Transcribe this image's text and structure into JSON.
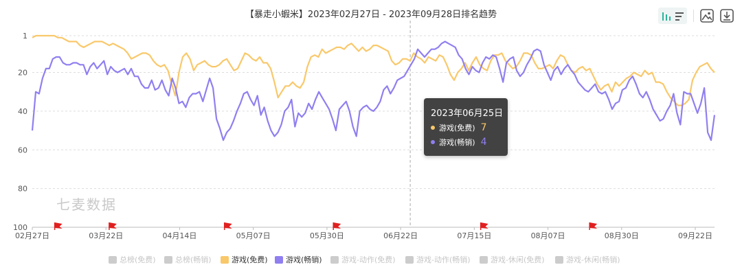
{
  "chart_data": {
    "type": "line",
    "title": "【暴走小蝦米】2023年02月27日 - 2023年09月28日排名趋势",
    "x_start": "2023-02-27",
    "x_end": "2023-09-28",
    "x_ticks": [
      "02月27日",
      "03月22日",
      "04月14日",
      "05月07日",
      "05月30日",
      "06月22日",
      "07月15日",
      "08月07日",
      "08月30日",
      "09月22日"
    ],
    "y_ticks": [
      "1",
      "20",
      "40",
      "60",
      "80",
      "100"
    ],
    "ylim": [
      1,
      100
    ],
    "y_inverted": true,
    "grid": true,
    "series": [
      {
        "name": "游戏(免费)",
        "color": "#f9c86a",
        "values": [
          2,
          1,
          1,
          1,
          1,
          1,
          1,
          2,
          2,
          3,
          4,
          4,
          4,
          6,
          7,
          6,
          5,
          4,
          4,
          4,
          5,
          6,
          5,
          6,
          7,
          8,
          10,
          13,
          12,
          11,
          10,
          10,
          11,
          14,
          16,
          17,
          16,
          19,
          26,
          32,
          20,
          12,
          10,
          13,
          19,
          16,
          15,
          14,
          16,
          17,
          17,
          16,
          14,
          13,
          16,
          19,
          18,
          14,
          10,
          11,
          13,
          14,
          12,
          15,
          15,
          18,
          25,
          33,
          30,
          27,
          27,
          25,
          27,
          28,
          25,
          17,
          12,
          11,
          12,
          8,
          10,
          9,
          8,
          7,
          7,
          8,
          6,
          5,
          7,
          9,
          7,
          9,
          8,
          6,
          6,
          7,
          8,
          9,
          14,
          16,
          15,
          13,
          13,
          14,
          10,
          12,
          13,
          15,
          12,
          13,
          14,
          11,
          12,
          16,
          21,
          24,
          20,
          18,
          15,
          19,
          15,
          12,
          16,
          18,
          19,
          14,
          11,
          11,
          10,
          14,
          16,
          18,
          17,
          14,
          10,
          10,
          11,
          15,
          18,
          18,
          17,
          16,
          18,
          14,
          11,
          12,
          16,
          19,
          20,
          18,
          17,
          19,
          18,
          22,
          26,
          29,
          27,
          26,
          30,
          25,
          27,
          25,
          23,
          22,
          20,
          21,
          22,
          19,
          21,
          20,
          25,
          25,
          26,
          30,
          33,
          35,
          37,
          37,
          36,
          34,
          24,
          20,
          17,
          16,
          15,
          18,
          20
        ],
        "tooltip_value": "7"
      },
      {
        "name": "游戏(畅销)",
        "color": "#8f7ff0",
        "values": [
          50,
          30,
          31,
          23,
          18,
          18,
          13,
          12,
          12,
          15,
          16,
          16,
          15,
          15,
          16,
          16,
          21,
          17,
          15,
          18,
          16,
          14,
          21,
          17,
          19,
          20,
          19,
          18,
          21,
          18,
          22,
          22,
          26,
          28,
          28,
          24,
          29,
          28,
          24,
          29,
          32,
          23,
          28,
          36,
          35,
          38,
          33,
          31,
          31,
          30,
          35,
          29,
          23,
          28,
          44,
          49,
          55,
          51,
          49,
          45,
          40,
          36,
          31,
          30,
          34,
          37,
          32,
          42,
          38,
          45,
          50,
          53,
          51,
          47,
          40,
          38,
          34,
          48,
          41,
          43,
          41,
          36,
          39,
          34,
          30,
          33,
          36,
          39,
          44,
          50,
          39,
          37,
          35,
          40,
          48,
          53,
          40,
          38,
          37,
          39,
          40,
          38,
          35,
          29,
          27,
          31,
          28,
          24,
          23,
          22,
          19,
          16,
          13,
          8,
          10,
          12,
          10,
          8,
          8,
          7,
          5,
          4,
          5,
          6,
          7,
          11,
          13,
          18,
          21,
          17,
          19,
          20,
          15,
          12,
          13,
          11,
          12,
          18,
          25,
          15,
          13,
          12,
          19,
          22,
          20,
          16,
          13,
          9,
          8,
          9,
          16,
          20,
          24,
          19,
          17,
          21,
          18,
          16,
          19,
          21,
          25,
          27,
          29,
          30,
          28,
          26,
          30,
          31,
          30,
          34,
          39,
          36,
          35,
          29,
          28,
          24,
          22,
          26,
          31,
          33,
          30,
          34,
          39,
          42,
          45,
          44,
          40,
          37,
          31,
          41,
          47,
          30,
          31,
          31,
          36,
          41,
          36,
          28,
          51,
          55,
          42
        ]
      }
    ],
    "tooltip": {
      "title": "2023年06月25日",
      "rows": [
        {
          "name": "游戏(免费)",
          "value": "7",
          "color": "#f9c86a"
        },
        {
          "name": "游戏(畅销)",
          "value": "4",
          "color": "#8f7ff0"
        }
      ]
    },
    "legend": [
      {
        "name": "总榜(免费)",
        "active": false,
        "color": "#cccccc"
      },
      {
        "name": "总榜(畅销)",
        "active": false,
        "color": "#cccccc"
      },
      {
        "name": "游戏(免费)",
        "active": true,
        "color": "#f9c86a"
      },
      {
        "name": "游戏(畅销)",
        "active": true,
        "color": "#8f7ff0"
      },
      {
        "name": "游戏-动作(免费)",
        "active": false,
        "color": "#cccccc"
      },
      {
        "name": "游戏-动作(畅销)",
        "active": false,
        "color": "#cccccc"
      },
      {
        "name": "游戏-休闲(免费)",
        "active": false,
        "color": "#cccccc"
      },
      {
        "name": "游戏-休闲(畅销)",
        "active": false,
        "color": "#cccccc"
      }
    ],
    "legend_placement": "bottom",
    "flag_markers_color": "#e02020",
    "flag_dates": [
      "2023-03-06",
      "2023-03-23",
      "2023-04-28",
      "2023-06-01",
      "2023-07-17",
      "2023-08-20"
    ]
  },
  "watermark": "七麦数据",
  "toolbar": [
    {
      "icon": "bar-chart-icon"
    },
    {
      "icon": "list-icon"
    },
    {
      "icon": "image-icon"
    },
    {
      "icon": "download-icon"
    }
  ]
}
